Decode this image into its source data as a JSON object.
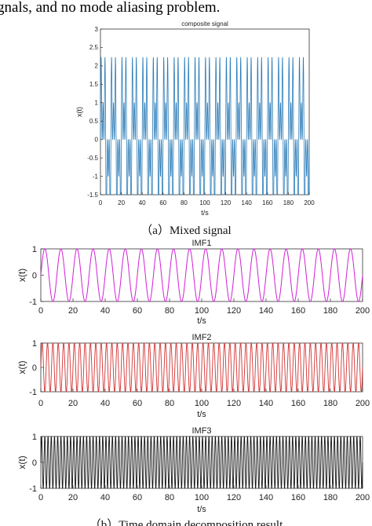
{
  "header_text": "gnals, and no mode aliasing problem.",
  "caption_a": "（a）Mixed signal",
  "caption_b": "（b）Time domain decomposition result",
  "colors": {
    "composite": "#2a7bb7",
    "imf1": "#d21fd6",
    "imf2": "#d43131",
    "imf3": "#111111",
    "axis": "#333333"
  },
  "chart_data": [
    {
      "type": "line",
      "title": "composite signal",
      "xlabel": "t/s",
      "ylabel": "x(t)",
      "xlim": [
        0,
        200
      ],
      "ylim": [
        -1.5,
        3
      ],
      "xticks": [
        "0",
        "20",
        "40",
        "60",
        "80",
        "100",
        "120",
        "140",
        "160",
        "180",
        "200"
      ],
      "yticks": [
        "-1.5",
        "-1",
        "-0.5",
        "0",
        "0.5",
        "1",
        "1.5",
        "2",
        "2.5",
        "3"
      ],
      "series": [
        {
          "formula": "sin(2*pi*0.1*t) + sin(2*pi*0.3*t) + sin(2*pi*0.5*t) (sum of IMF1, IMF2, IMF3)",
          "t_range": [
            0,
            200
          ],
          "period_peaks_s": 10
        }
      ]
    },
    {
      "type": "line",
      "title": "IMF1",
      "xlabel": "t/s",
      "ylabel": "x(t)",
      "xlim": [
        0,
        200
      ],
      "ylim": [
        -1,
        1
      ],
      "xticks": [
        "0",
        "20",
        "40",
        "60",
        "80",
        "100",
        "120",
        "140",
        "160",
        "180",
        "200"
      ],
      "yticks": [
        "-1",
        "0",
        "1"
      ],
      "series": [
        {
          "formula": "sin(2*pi*0.1*t)",
          "frequency_hz": 0.1,
          "amplitude": 1
        }
      ]
    },
    {
      "type": "line",
      "title": "IMF2",
      "xlabel": "t/s",
      "ylabel": "x(t)",
      "xlim": [
        0,
        200
      ],
      "ylim": [
        -1,
        1
      ],
      "xticks": [
        "0",
        "20",
        "40",
        "60",
        "80",
        "100",
        "120",
        "140",
        "160",
        "180",
        "200"
      ],
      "yticks": [
        "-1",
        "0",
        "1"
      ],
      "series": [
        {
          "formula": "sin(2*pi*0.3*t)",
          "frequency_hz": 0.3,
          "amplitude": 1
        }
      ]
    },
    {
      "type": "line",
      "title": "IMF3",
      "xlabel": "t/s",
      "ylabel": "x(t)",
      "xlim": [
        0,
        200
      ],
      "ylim": [
        -1,
        1
      ],
      "xticks": [
        "0",
        "20",
        "40",
        "60",
        "80",
        "100",
        "120",
        "140",
        "160",
        "180",
        "200"
      ],
      "yticks": [
        "-1",
        "0",
        "1"
      ],
      "series": [
        {
          "formula": "sin(2*pi*0.5*t)",
          "frequency_hz": 0.5,
          "amplitude": 1
        }
      ]
    }
  ]
}
